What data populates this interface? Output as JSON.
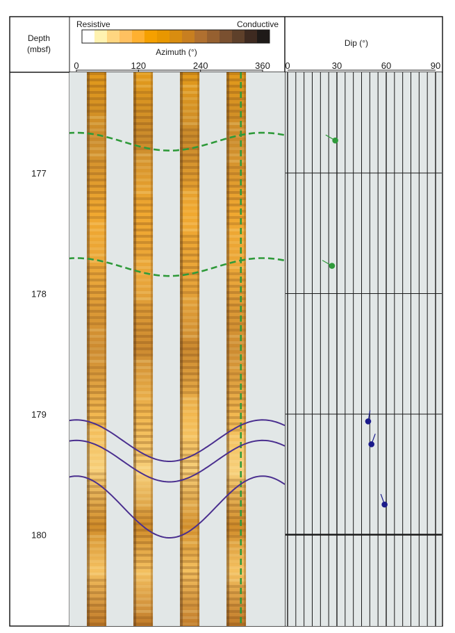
{
  "header": {
    "depth_label": "Depth",
    "depth_unit": "(mbsf)",
    "scale_left": "Resistive",
    "scale_right": "Conductive",
    "azimuth_label": "Azimuth (°)",
    "dip_label": "Dip (°)"
  },
  "colors": {
    "image_bg": "#e2e7e7",
    "sinusoid_green": "#2f9a3a",
    "sinusoid_purple": "#4a2f8f",
    "dip_green": "#2f9a3a",
    "dip_blue": "#1a1a8a",
    "color_scale": [
      "#ffffff",
      "#fff2b0",
      "#ffd680",
      "#ffc060",
      "#ffb030",
      "#f5a000",
      "#e89700",
      "#d98d10",
      "#c87f20",
      "#b07030",
      "#966030",
      "#7a5030",
      "#5e402a",
      "#3e2a20",
      "#1e1a18"
    ]
  },
  "chart_data": [
    {
      "type": "image-log",
      "panel": "FMS image",
      "x_axis": {
        "label": "Azimuth (°)",
        "min": 0,
        "max": 360,
        "ticks": [
          0,
          120,
          240,
          360
        ]
      },
      "y_axis": {
        "label": "Depth (mbsf)",
        "min": 176.15,
        "max": 180.75,
        "ticks": [
          177,
          178,
          179,
          180
        ],
        "inverted": true
      },
      "pad_centers_azimuth": [
        35,
        125,
        215,
        305
      ],
      "vertical_marker": {
        "azimuth": 318,
        "style": "dashed",
        "color": "green"
      },
      "sinusoids": [
        {
          "style": "dashed",
          "color": "green",
          "center_depth": 176.74,
          "amplitude": 0.074,
          "trough_azimuth": 180
        },
        {
          "style": "dashed",
          "color": "green",
          "center_depth": 177.78,
          "amplitude": 0.074,
          "trough_azimuth": 180
        },
        {
          "style": "solid",
          "color": "purple",
          "center_depth": 179.22,
          "amplitude": 0.172,
          "trough_azimuth": 180
        },
        {
          "style": "solid",
          "color": "purple",
          "center_depth": 179.39,
          "amplitude": 0.172,
          "trough_azimuth": 180
        },
        {
          "style": "solid",
          "color": "purple",
          "center_depth": 179.77,
          "amplitude": 0.256,
          "trough_azimuth": 180
        }
      ]
    },
    {
      "type": "scatter",
      "panel": "Dip tadpoles",
      "x_axis": {
        "label": "Dip (°)",
        "min": 0,
        "max": 90,
        "ticks": [
          0,
          30,
          60,
          90
        ]
      },
      "y_axis": {
        "label": "Depth (mbsf)",
        "min": 176.15,
        "max": 180.75,
        "inverted": true
      },
      "points": [
        {
          "dip": 29,
          "depth": 176.73,
          "tail_azimuth": 300,
          "color": "green"
        },
        {
          "dip": 27,
          "depth": 177.77,
          "tail_azimuth": 300,
          "color": "green"
        },
        {
          "dip": 49,
          "depth": 179.06,
          "tail_azimuth": 10,
          "color": "blue"
        },
        {
          "dip": 51,
          "depth": 179.25,
          "tail_azimuth": 20,
          "color": "blue"
        },
        {
          "dip": 59,
          "depth": 179.75,
          "tail_azimuth": 340,
          "color": "blue"
        }
      ]
    }
  ]
}
